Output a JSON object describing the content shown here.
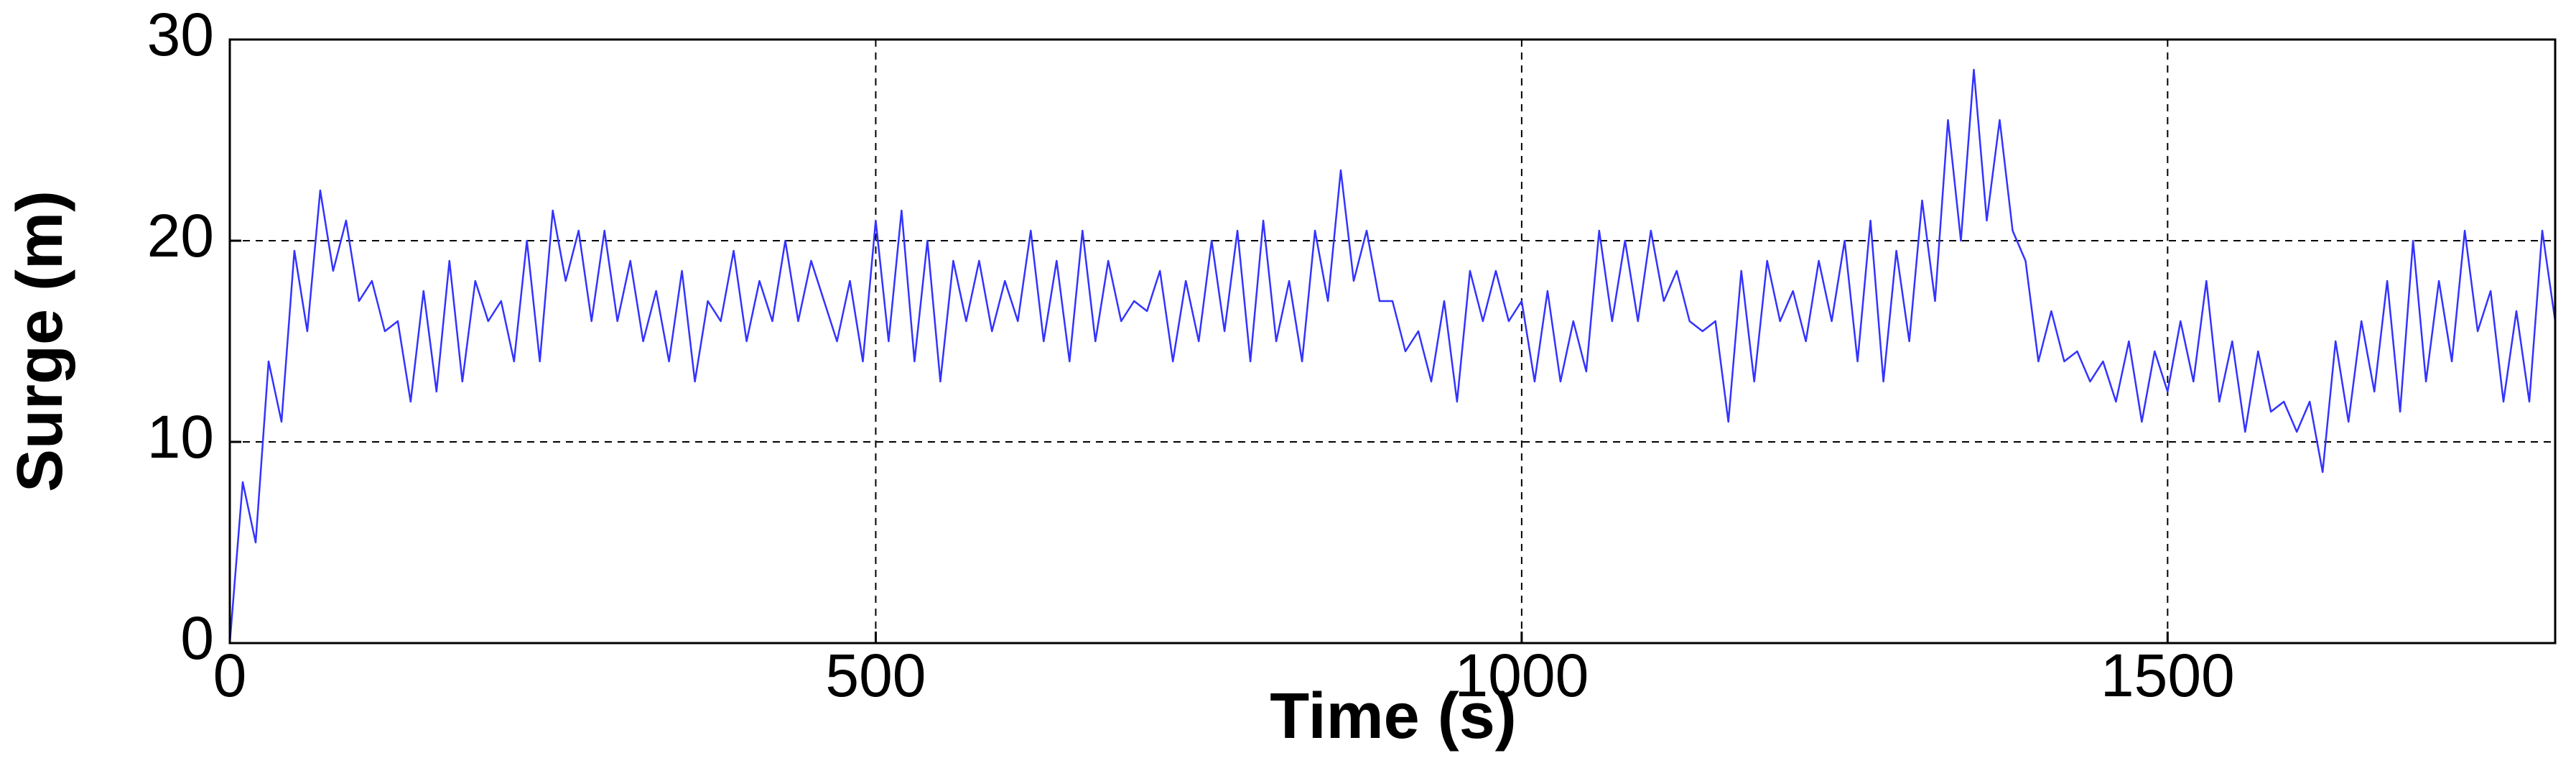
{
  "chart_data": {
    "type": "line",
    "x_label": "Time (s)",
    "y_label": "Surge (m)",
    "xlim": [
      0,
      1800
    ],
    "ylim": [
      0,
      30
    ],
    "xticks": [
      0,
      500,
      1000,
      1500
    ],
    "yticks": [
      0,
      10,
      20,
      30
    ],
    "grid": true,
    "x": [
      0,
      10,
      20,
      30,
      40,
      50,
      60,
      70,
      80,
      90,
      100,
      110,
      120,
      130,
      140,
      150,
      160,
      170,
      180,
      190,
      200,
      210,
      220,
      230,
      240,
      250,
      260,
      270,
      280,
      290,
      300,
      310,
      320,
      330,
      340,
      350,
      360,
      370,
      380,
      390,
      400,
      410,
      420,
      430,
      440,
      450,
      460,
      470,
      480,
      490,
      500,
      510,
      520,
      530,
      540,
      550,
      560,
      570,
      580,
      590,
      600,
      610,
      620,
      630,
      640,
      650,
      660,
      670,
      680,
      690,
      700,
      710,
      720,
      730,
      740,
      750,
      760,
      770,
      780,
      790,
      800,
      810,
      820,
      830,
      840,
      850,
      860,
      870,
      880,
      890,
      900,
      910,
      920,
      930,
      940,
      950,
      960,
      970,
      980,
      990,
      1000,
      1010,
      1020,
      1030,
      1040,
      1050,
      1060,
      1070,
      1080,
      1090,
      1100,
      1110,
      1120,
      1130,
      1140,
      1150,
      1160,
      1170,
      1180,
      1190,
      1200,
      1210,
      1220,
      1230,
      1240,
      1250,
      1260,
      1270,
      1280,
      1290,
      1300,
      1310,
      1320,
      1330,
      1340,
      1350,
      1360,
      1370,
      1380,
      1390,
      1400,
      1410,
      1420,
      1430,
      1440,
      1450,
      1460,
      1470,
      1480,
      1490,
      1500,
      1510,
      1520,
      1530,
      1540,
      1550,
      1560,
      1570,
      1580,
      1590,
      1600,
      1610,
      1620,
      1630,
      1640,
      1650,
      1660,
      1670,
      1680,
      1690,
      1700,
      1710,
      1720,
      1730,
      1740,
      1750,
      1760,
      1770,
      1780,
      1790,
      1800
    ],
    "series": [
      {
        "color": "#3333ff",
        "values": [
          0,
          8,
          5,
          14,
          11,
          19.5,
          15.5,
          22.5,
          18.5,
          21,
          17,
          18,
          15.5,
          16,
          12,
          17.5,
          12.5,
          19,
          13,
          18,
          16,
          17,
          14,
          20,
          14,
          21.5,
          18,
          20.5,
          16,
          20.5,
          16,
          19,
          15,
          17.5,
          14,
          18.5,
          13,
          17,
          16,
          19.5,
          15,
          18,
          16,
          20,
          16,
          19,
          17,
          15,
          18,
          14,
          21,
          15,
          21.5,
          14,
          20,
          13,
          19,
          16,
          19,
          15.5,
          18,
          16,
          20.5,
          15,
          19,
          14,
          20.5,
          15,
          19,
          16,
          17,
          16.5,
          18.5,
          14,
          18,
          15,
          20,
          15.5,
          20.5,
          14,
          21,
          15,
          18,
          14,
          20.5,
          17,
          23.5,
          18,
          20.5,
          17,
          17,
          14.5,
          15.5,
          13,
          17,
          12,
          18.5,
          16,
          18.5,
          16,
          17,
          13,
          17.5,
          13,
          16,
          13.5,
          20.5,
          16,
          20,
          16,
          20.5,
          17,
          18.5,
          16,
          15.5,
          16,
          11,
          18.5,
          13,
          19,
          16,
          17.5,
          15,
          19,
          16,
          20,
          14,
          21,
          13,
          19.5,
          15,
          22,
          17,
          26,
          20,
          28.5,
          21,
          26,
          20.5,
          19,
          14,
          16.5,
          14,
          14.5,
          13,
          14,
          12,
          15,
          11,
          14.5,
          12.5,
          16,
          13,
          18,
          12,
          15,
          10.5,
          14.5,
          11.5,
          12,
          10.5,
          12,
          8.5,
          15,
          11,
          16,
          12.5,
          18,
          11.5,
          20,
          13,
          18,
          14,
          20.5,
          15.5,
          17.5,
          12,
          16.5,
          12,
          20.5,
          16
        ]
      }
    ]
  }
}
